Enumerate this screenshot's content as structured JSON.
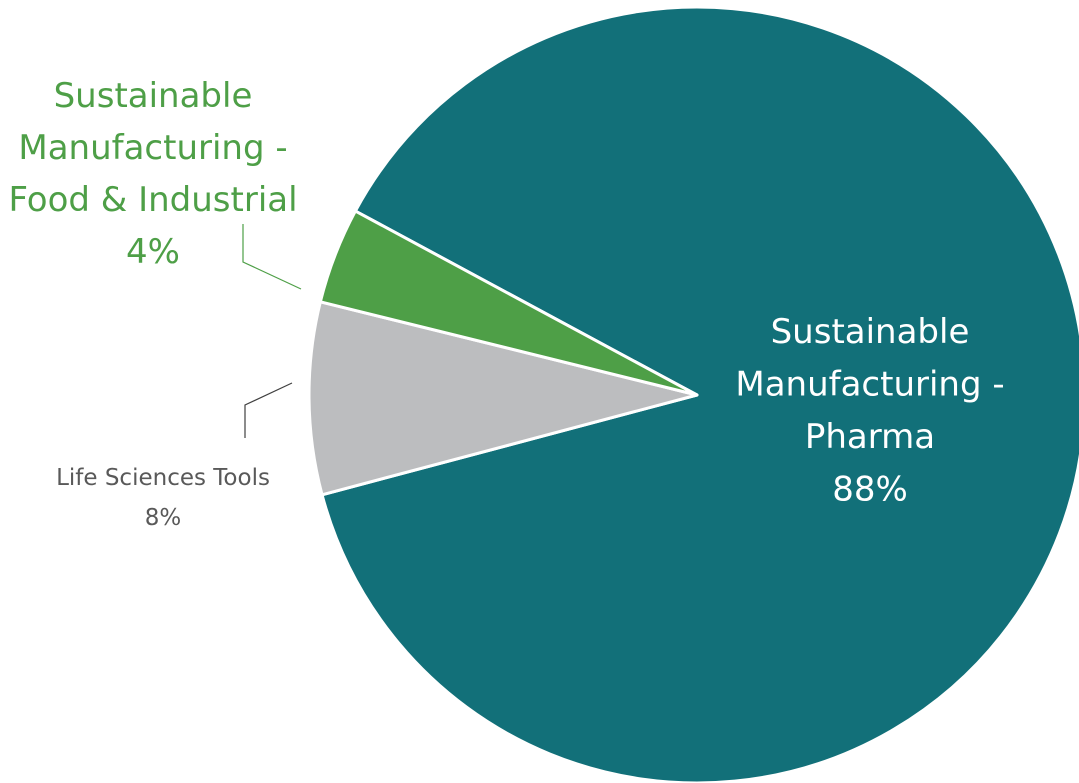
{
  "chart_data": {
    "type": "pie",
    "title": "",
    "legend": "none",
    "slices": [
      {
        "label_lines": [
          "Sustainable",
          "Manufacturing -",
          "Pharma"
        ],
        "percent_label": "88%",
        "value": 88,
        "color": "#127079",
        "label_color": "#ffffff"
      },
      {
        "label_lines": [
          "Life Sciences Tools"
        ],
        "percent_label": "8%",
        "value": 8,
        "color": "#bcbdbf",
        "label_color": "#595959"
      },
      {
        "label_lines": [
          "Sustainable",
          "Manufacturing -",
          "Food & Industrial"
        ],
        "percent_label": "4%",
        "value": 4,
        "color": "#4e9f47",
        "label_color": "#4e9f47"
      }
    ],
    "leader_line_colors": [
      "#4e9f47",
      "#404040"
    ]
  }
}
